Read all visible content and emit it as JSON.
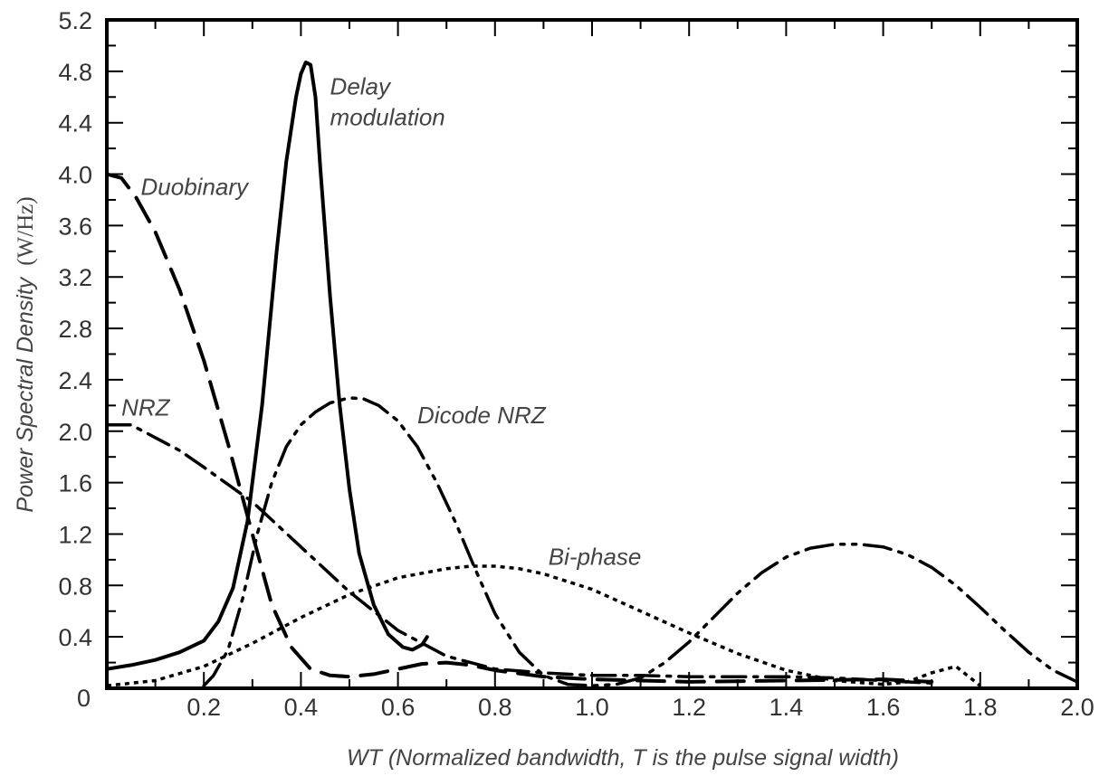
{
  "chart_data": {
    "type": "line",
    "xlabel": "WT (Normalized bandwidth, T is the pulse signal width)",
    "ylabel": "Power Spectral Density",
    "ylabel_unit": "(W/Hz)",
    "xlim": [
      0,
      2.0
    ],
    "ylim": [
      0,
      5.2
    ],
    "x_ticks": [
      "0.2",
      "0.4",
      "0.6",
      "0.8",
      "1.0",
      "1.2",
      "1.4",
      "1.6",
      "1.8",
      "2.0"
    ],
    "y_ticks": [
      "0",
      "0.4",
      "0.8",
      "1.2",
      "1.6",
      "2.0",
      "2.4",
      "2.8",
      "3.2",
      "3.6",
      "4.0",
      "4.4",
      "4.8",
      "5.2"
    ],
    "grid": false,
    "series": [
      {
        "name": "Delay modulation",
        "label_lines": [
          "Delay",
          "modulation"
        ],
        "style": "solid",
        "x": [
          0,
          0.05,
          0.1,
          0.15,
          0.2,
          0.23,
          0.26,
          0.29,
          0.32,
          0.35,
          0.37,
          0.39,
          0.4,
          0.41,
          0.42,
          0.43,
          0.44,
          0.46,
          0.48,
          0.5,
          0.52,
          0.55,
          0.58,
          0.61,
          0.63,
          0.65,
          0.66
        ],
        "y": [
          0.15,
          0.18,
          0.22,
          0.28,
          0.37,
          0.52,
          0.78,
          1.3,
          2.2,
          3.4,
          4.1,
          4.6,
          4.78,
          4.87,
          4.85,
          4.6,
          4.05,
          3.05,
          2.2,
          1.55,
          1.05,
          0.65,
          0.42,
          0.32,
          0.3,
          0.34,
          0.4
        ]
      },
      {
        "name": "Duobinary",
        "style": "long-dash",
        "x": [
          0,
          0.03,
          0.06,
          0.1,
          0.15,
          0.2,
          0.25,
          0.3,
          0.34,
          0.38,
          0.42,
          0.46,
          0.5,
          0.55,
          0.6,
          0.65,
          0.7,
          0.75,
          0.8,
          0.9,
          1.0,
          1.2,
          1.4,
          1.6,
          1.7
        ],
        "y": [
          4.0,
          3.97,
          3.82,
          3.55,
          3.1,
          2.55,
          1.9,
          1.2,
          0.65,
          0.32,
          0.15,
          0.1,
          0.09,
          0.11,
          0.15,
          0.19,
          0.2,
          0.18,
          0.14,
          0.09,
          0.07,
          0.05,
          0.06,
          0.07,
          0.05
        ]
      },
      {
        "name": "NRZ",
        "style": "dash-dot",
        "x": [
          0,
          0.05,
          0.1,
          0.15,
          0.2,
          0.3,
          0.4,
          0.5,
          0.6,
          0.7,
          0.8,
          0.9,
          1.0,
          1.1,
          1.2,
          1.3,
          1.4,
          1.5,
          1.6,
          1.7
        ],
        "y": [
          2.05,
          2.05,
          1.95,
          1.85,
          1.72,
          1.45,
          1.1,
          0.75,
          0.45,
          0.25,
          0.15,
          0.12,
          0.1,
          0.1,
          0.09,
          0.09,
          0.09,
          0.08,
          0.06,
          0.04
        ]
      },
      {
        "name": "Dicode NRZ",
        "style": "dash-dot-dot",
        "x": [
          0.2,
          0.22,
          0.25,
          0.28,
          0.31,
          0.34,
          0.37,
          0.4,
          0.43,
          0.46,
          0.5,
          0.53,
          0.56,
          0.6,
          0.64,
          0.68,
          0.72,
          0.76,
          0.8,
          0.85,
          0.9,
          0.95,
          1.0,
          1.05,
          1.1,
          1.15,
          1.2,
          1.25,
          1.3,
          1.35,
          1.4,
          1.45,
          1.5,
          1.55,
          1.6,
          1.65,
          1.7,
          1.75,
          1.8,
          1.85,
          1.9,
          1.95,
          2.0
        ],
        "y": [
          0.02,
          0.1,
          0.3,
          0.7,
          1.2,
          1.6,
          1.88,
          2.05,
          2.15,
          2.22,
          2.26,
          2.25,
          2.2,
          2.08,
          1.88,
          1.6,
          1.28,
          0.92,
          0.58,
          0.28,
          0.1,
          0.03,
          0.02,
          0.03,
          0.08,
          0.2,
          0.36,
          0.55,
          0.74,
          0.9,
          1.02,
          1.09,
          1.12,
          1.12,
          1.1,
          1.04,
          0.94,
          0.8,
          0.63,
          0.45,
          0.28,
          0.14,
          0.05
        ]
      },
      {
        "name": "Bi-phase",
        "style": "dotted",
        "x": [
          0,
          0.1,
          0.2,
          0.3,
          0.4,
          0.5,
          0.6,
          0.7,
          0.75,
          0.8,
          0.85,
          0.9,
          1.0,
          1.1,
          1.2,
          1.3,
          1.4,
          1.5,
          1.6,
          1.65,
          1.7,
          1.75,
          1.8
        ],
        "y": [
          0.02,
          0.06,
          0.17,
          0.35,
          0.55,
          0.73,
          0.86,
          0.93,
          0.95,
          0.95,
          0.93,
          0.89,
          0.77,
          0.6,
          0.43,
          0.27,
          0.14,
          0.06,
          0.03,
          0.05,
          0.12,
          0.17,
          0.02
        ]
      }
    ]
  }
}
